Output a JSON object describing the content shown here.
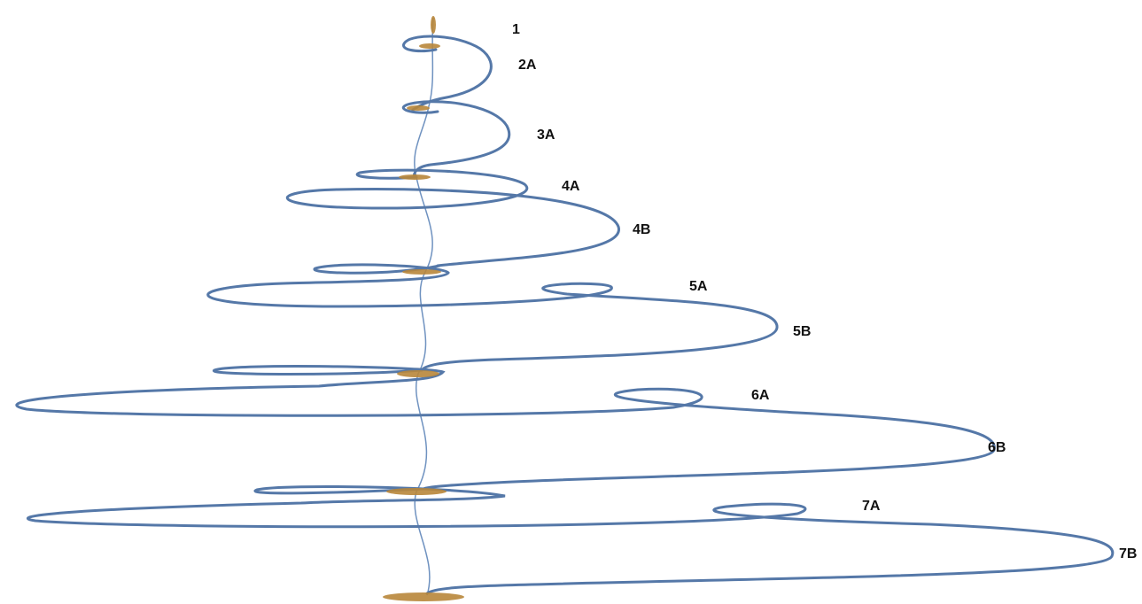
{
  "labels": [
    "1",
    "2A",
    "3A",
    "4A",
    "4B",
    "5A",
    "5B",
    "6A",
    "6B",
    "7A",
    "7B"
  ]
}
